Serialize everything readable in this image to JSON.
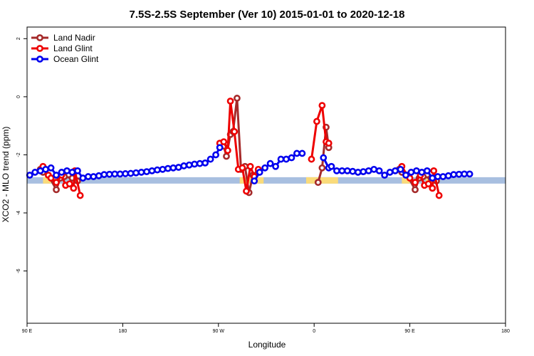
{
  "chart_data": {
    "type": "line",
    "title": "7.5S-2.5S September (Ver 10)   2015-01-01 to 2020-12-18",
    "xlabel": "Longitude",
    "ylabel": "XCO2 - MLO trend (ppm)",
    "xlim": [
      90,
      450
    ],
    "ylim": [
      -7.8,
      2.4
    ],
    "x_ticks": [
      {
        "value": 90,
        "label": "90 E"
      },
      {
        "value": 162,
        "label": "180"
      },
      {
        "value": 234,
        "label": "90 W"
      },
      {
        "value": 306,
        "label": "0"
      },
      {
        "value": 378,
        "label": "90 E"
      },
      {
        "value": 450,
        "label": "180"
      }
    ],
    "y_ticks": [
      {
        "value": 2,
        "label": "2"
      },
      {
        "value": 0,
        "label": "0"
      },
      {
        "value": -2,
        "label": "-2"
      },
      {
        "value": -4,
        "label": "-4"
      },
      {
        "value": -6,
        "label": "-6"
      }
    ],
    "legend_position": "top-left",
    "band": {
      "y": -2.88,
      "color": "#a8bfe0",
      "highlight_color": "#fadb7a",
      "highlight_ranges": [
        [
          102,
          108
        ],
        [
          250,
          268
        ],
        [
          300,
          324
        ],
        [
          372,
          378
        ],
        [
          390,
          396
        ]
      ]
    },
    "series": [
      {
        "name": "Land Nadir",
        "color": "#a52a2a",
        "segments": [
          [
            [
              100,
              -2.5
            ],
            [
              102,
              -2.6
            ],
            [
              106,
              -2.7
            ],
            [
              112,
              -3.2
            ],
            [
              115,
              -2.8
            ],
            [
              118,
              -2.75
            ],
            [
              124,
              -2.8
            ],
            [
              128,
              -2.9
            ]
          ],
          [
            [
              238,
              -1.7
            ],
            [
              240,
              -2.05
            ],
            [
              243,
              -1.3
            ],
            [
              245,
              -1.2
            ],
            [
              248,
              -0.05
            ],
            [
              251,
              -2.5
            ],
            [
              254,
              -2.4
            ],
            [
              257,
              -3.3
            ],
            [
              260,
              -2.7
            ],
            [
              264,
              -2.6
            ]
          ],
          [
            [
              309,
              -2.95
            ],
            [
              312,
              -2.45
            ],
            [
              315,
              -1.05
            ],
            [
              317,
              -1.75
            ]
          ],
          [
            [
              370,
              -2.5
            ],
            [
              372,
              -2.6
            ],
            [
              376,
              -2.7
            ],
            [
              382,
              -3.2
            ],
            [
              385,
              -2.8
            ],
            [
              388,
              -2.75
            ],
            [
              394,
              -2.8
            ],
            [
              398,
              -2.9
            ]
          ]
        ]
      },
      {
        "name": "Land Glint",
        "color": "#ee0000",
        "segments": [
          [
            [
              102,
              -2.4
            ],
            [
              106,
              -2.7
            ],
            [
              108,
              -2.8
            ],
            [
              112,
              -2.95
            ],
            [
              116,
              -2.7
            ],
            [
              119,
              -3.05
            ],
            [
              122,
              -3.0
            ],
            [
              125,
              -3.15
            ],
            [
              126,
              -2.55
            ],
            [
              130,
              -3.4
            ]
          ],
          [
            [
              235,
              -1.6
            ],
            [
              238,
              -1.55
            ],
            [
              241,
              -1.85
            ],
            [
              243,
              -0.15
            ],
            [
              246,
              -1.2
            ],
            [
              249,
              -2.5
            ],
            [
              252,
              -2.45
            ],
            [
              255,
              -3.25
            ],
            [
              258,
              -2.4
            ],
            [
              261,
              -2.75
            ],
            [
              264,
              -2.5
            ]
          ],
          [
            [
              304,
              -2.15
            ],
            [
              308,
              -0.85
            ],
            [
              312,
              -0.3
            ],
            [
              315,
              -1.55
            ],
            [
              317,
              -1.6
            ]
          ],
          [
            [
              372,
              -2.4
            ],
            [
              376,
              -2.7
            ],
            [
              378,
              -2.8
            ],
            [
              382,
              -2.95
            ],
            [
              386,
              -2.7
            ],
            [
              389,
              -3.05
            ],
            [
              392,
              -3.0
            ],
            [
              395,
              -3.15
            ],
            [
              396,
              -2.55
            ],
            [
              400,
              -3.4
            ]
          ]
        ]
      },
      {
        "name": "Ocean Glint",
        "color": "#0000ee",
        "segments": [
          [
            [
              92,
              -2.7
            ],
            [
              96,
              -2.6
            ],
            [
              100,
              -2.55
            ],
            [
              104,
              -2.5
            ],
            [
              108,
              -2.45
            ],
            [
              112,
              -2.7
            ],
            [
              116,
              -2.6
            ],
            [
              120,
              -2.55
            ],
            [
              124,
              -2.6
            ],
            [
              128,
              -2.55
            ],
            [
              132,
              -2.8
            ],
            [
              136,
              -2.75
            ],
            [
              140,
              -2.75
            ],
            [
              144,
              -2.72
            ],
            [
              148,
              -2.68
            ],
            [
              152,
              -2.67
            ],
            [
              156,
              -2.66
            ],
            [
              160,
              -2.66
            ],
            [
              164,
              -2.65
            ],
            [
              168,
              -2.64
            ],
            [
              172,
              -2.62
            ],
            [
              176,
              -2.6
            ],
            [
              180,
              -2.58
            ],
            [
              184,
              -2.55
            ],
            [
              188,
              -2.52
            ],
            [
              192,
              -2.5
            ],
            [
              196,
              -2.47
            ],
            [
              200,
              -2.45
            ],
            [
              204,
              -2.43
            ],
            [
              208,
              -2.38
            ],
            [
              212,
              -2.35
            ],
            [
              216,
              -2.32
            ],
            [
              220,
              -2.3
            ],
            [
              224,
              -2.28
            ],
            [
              228,
              -2.15
            ],
            [
              232,
              -2.0
            ],
            [
              235,
              -1.75
            ]
          ],
          [
            [
              261,
              -2.9
            ],
            [
              265,
              -2.6
            ],
            [
              269,
              -2.45
            ],
            [
              273,
              -2.3
            ],
            [
              277,
              -2.4
            ],
            [
              281,
              -2.15
            ],
            [
              285,
              -2.15
            ],
            [
              289,
              -2.1
            ],
            [
              293,
              -1.95
            ],
            [
              297,
              -1.95
            ]
          ],
          [
            [
              313,
              -2.1
            ],
            [
              317,
              -2.45
            ],
            [
              319,
              -2.4
            ],
            [
              323,
              -2.55
            ],
            [
              327,
              -2.55
            ],
            [
              331,
              -2.55
            ],
            [
              335,
              -2.57
            ],
            [
              339,
              -2.6
            ],
            [
              343,
              -2.58
            ],
            [
              347,
              -2.55
            ],
            [
              351,
              -2.5
            ],
            [
              355,
              -2.55
            ],
            [
              359,
              -2.7
            ],
            [
              363,
              -2.6
            ],
            [
              367,
              -2.55
            ],
            [
              371,
              -2.5
            ],
            [
              375,
              -2.7
            ],
            [
              379,
              -2.6
            ],
            [
              383,
              -2.55
            ],
            [
              387,
              -2.6
            ],
            [
              391,
              -2.55
            ],
            [
              395,
              -2.8
            ],
            [
              399,
              -2.75
            ],
            [
              403,
              -2.75
            ],
            [
              407,
              -2.72
            ],
            [
              411,
              -2.68
            ],
            [
              415,
              -2.67
            ],
            [
              419,
              -2.66
            ],
            [
              423,
              -2.66
            ]
          ]
        ]
      }
    ]
  }
}
